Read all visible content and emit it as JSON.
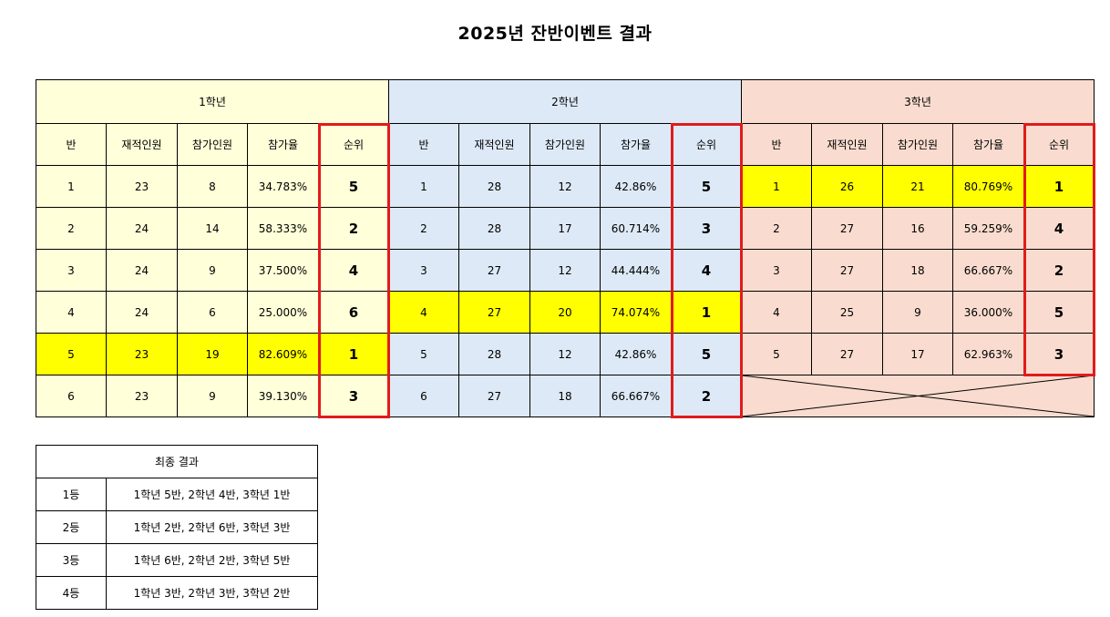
{
  "title": "2025년 잔반이벤트 결과",
  "columns": [
    "반",
    "재적인원",
    "참가인원",
    "참가율",
    "순위"
  ],
  "grades": [
    {
      "name": "1학년",
      "rows": [
        {
          "cls": "1",
          "enrolled": "23",
          "participants": "8",
          "rate": "34.783%",
          "rank": "5",
          "highlight": false
        },
        {
          "cls": "2",
          "enrolled": "24",
          "participants": "14",
          "rate": "58.333%",
          "rank": "2",
          "highlight": false
        },
        {
          "cls": "3",
          "enrolled": "24",
          "participants": "9",
          "rate": "37.500%",
          "rank": "4",
          "highlight": false
        },
        {
          "cls": "4",
          "enrolled": "24",
          "participants": "6",
          "rate": "25.000%",
          "rank": "6",
          "highlight": false
        },
        {
          "cls": "5",
          "enrolled": "23",
          "participants": "19",
          "rate": "82.609%",
          "rank": "1",
          "highlight": true
        },
        {
          "cls": "6",
          "enrolled": "23",
          "participants": "9",
          "rate": "39.130%",
          "rank": "3",
          "highlight": false
        }
      ]
    },
    {
      "name": "2학년",
      "rows": [
        {
          "cls": "1",
          "enrolled": "28",
          "participants": "12",
          "rate": "42.86%",
          "rank": "5",
          "highlight": false
        },
        {
          "cls": "2",
          "enrolled": "28",
          "participants": "17",
          "rate": "60.714%",
          "rank": "3",
          "highlight": false
        },
        {
          "cls": "3",
          "enrolled": "27",
          "participants": "12",
          "rate": "44.444%",
          "rank": "4",
          "highlight": false
        },
        {
          "cls": "4",
          "enrolled": "27",
          "participants": "20",
          "rate": "74.074%",
          "rank": "1",
          "highlight": true
        },
        {
          "cls": "5",
          "enrolled": "28",
          "participants": "12",
          "rate": "42.86%",
          "rank": "5",
          "highlight": false
        },
        {
          "cls": "6",
          "enrolled": "27",
          "participants": "18",
          "rate": "66.667%",
          "rank": "2",
          "highlight": false
        }
      ]
    },
    {
      "name": "3학년",
      "rows": [
        {
          "cls": "1",
          "enrolled": "26",
          "participants": "21",
          "rate": "80.769%",
          "rank": "1",
          "highlight": true
        },
        {
          "cls": "2",
          "enrolled": "27",
          "participants": "16",
          "rate": "59.259%",
          "rank": "4",
          "highlight": false
        },
        {
          "cls": "3",
          "enrolled": "27",
          "participants": "18",
          "rate": "66.667%",
          "rank": "2",
          "highlight": false
        },
        {
          "cls": "4",
          "enrolled": "25",
          "participants": "9",
          "rate": "36.000%",
          "rank": "5",
          "highlight": false
        },
        {
          "cls": "5",
          "enrolled": "27",
          "participants": "17",
          "rate": "62.963%",
          "rank": "3",
          "highlight": false
        }
      ]
    }
  ],
  "final": {
    "title": "최종 결과",
    "rows": [
      {
        "place": "1등",
        "classes": "1학년 5반, 2학년 4반, 3학년 1반"
      },
      {
        "place": "2등",
        "classes": "1학년 2반, 2학년 6반, 3학년 3반"
      },
      {
        "place": "3등",
        "classes": "1학년 6반, 2학년 2반, 3학년 5반"
      },
      {
        "place": "4등",
        "classes": "1학년 3반, 2학년 3반, 3학년 2반"
      }
    ]
  },
  "colors": {
    "grade1_bg": "#ffffd9",
    "grade2_bg": "#dde9f6",
    "grade3_bg": "#f9dccf",
    "highlight": "#ffff00",
    "rank_box": "#e01b1b"
  }
}
